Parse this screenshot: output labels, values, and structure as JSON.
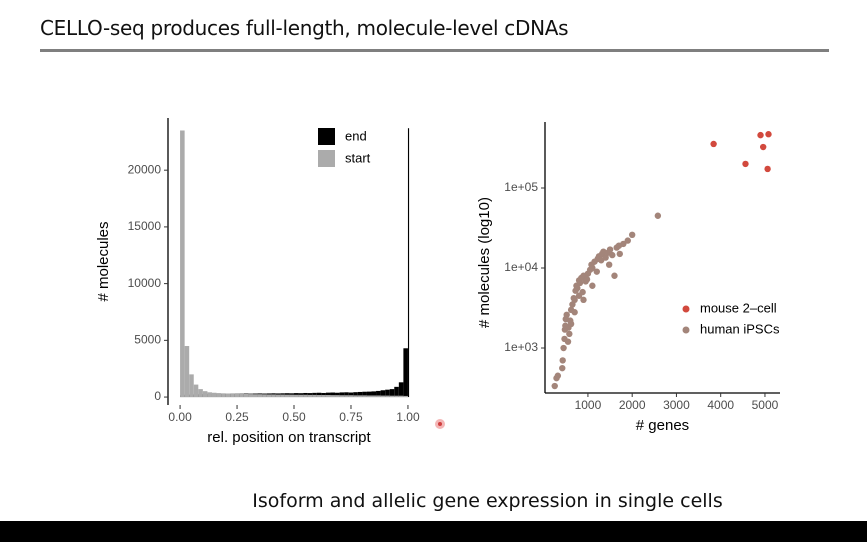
{
  "header": {
    "title": "CELLO-seq produces full-length, molecule-level cDNAs"
  },
  "caption": "Isoform and allelic gene expression in single cells",
  "chart_data": [
    {
      "type": "histogram",
      "x_label": "rel. position on transcript",
      "y_label": "# molecules",
      "bins": [
        0,
        0.02,
        0.04,
        0.06,
        0.08,
        0.1,
        0.12,
        0.14,
        0.16,
        0.18,
        0.2,
        0.22,
        0.24,
        0.26,
        0.28,
        0.3,
        0.32,
        0.34,
        0.36,
        0.38,
        0.4,
        0.42,
        0.44,
        0.46,
        0.48,
        0.5,
        0.52,
        0.54,
        0.56,
        0.58,
        0.6,
        0.62,
        0.64,
        0.66,
        0.68,
        0.7,
        0.72,
        0.74,
        0.76,
        0.78,
        0.8,
        0.82,
        0.84,
        0.86,
        0.88,
        0.9,
        0.92,
        0.94,
        0.96,
        0.98,
        1,
        1.005
      ],
      "series": [
        {
          "name": "end",
          "color": "#000000",
          "values": [
            150,
            200,
            220,
            230,
            250,
            260,
            270,
            280,
            280,
            290,
            290,
            300,
            300,
            300,
            310,
            300,
            310,
            320,
            310,
            320,
            330,
            320,
            330,
            340,
            330,
            350,
            340,
            360,
            350,
            370,
            380,
            360,
            390,
            400,
            380,
            410,
            420,
            400,
            430,
            450,
            470,
            480,
            500,
            540,
            600,
            650,
            700,
            900,
            1300,
            4300,
            23700
          ]
        },
        {
          "name": "start",
          "color": "#ababab",
          "values": [
            23500,
            4500,
            2000,
            1100,
            700,
            520,
            420,
            380,
            350,
            330,
            310,
            300,
            290,
            280,
            270,
            260,
            250,
            250,
            240,
            230,
            230,
            220,
            220,
            210,
            210,
            200,
            200,
            200,
            190,
            190,
            180,
            180,
            180,
            170,
            170,
            160,
            160,
            160,
            150,
            150,
            150,
            140,
            140,
            140,
            130,
            130,
            120,
            120,
            120,
            100,
            0
          ]
        }
      ],
      "xlim": [
        -0.053,
        1.009
      ],
      "ylim": [
        -700,
        24600
      ],
      "xticks": [
        {
          "value": 0,
          "label": "0.00"
        },
        0.25,
        {
          "value": 0.5,
          "label": "0.50"
        },
        0.75,
        {
          "value": 1,
          "label": "1.00"
        }
      ],
      "yticks": [
        0,
        5000,
        10000,
        15000,
        20000
      ],
      "legend": "top-right",
      "grid": false
    },
    {
      "type": "scatter",
      "x_label": "# genes",
      "y_label": "# molecules (log10)",
      "log_y": true,
      "series": [
        {
          "name": "mouse 2–cell",
          "color": "#d2493d",
          "x": [
            3840,
            4560,
            4900,
            5080,
            4960,
            5060
          ],
          "values": [
            355000,
            200000,
            458000,
            470000,
            325000,
            173000
          ]
        },
        {
          "name": "human iPSCs",
          "color": "#a3857a",
          "x": [
            250,
            290,
            320,
            420,
            430,
            450,
            470,
            480,
            490,
            500,
            520,
            560,
            580,
            600,
            620,
            650,
            680,
            700,
            720,
            740,
            760,
            800,
            820,
            850,
            880,
            900,
            950,
            980,
            1000,
            1050,
            1080,
            1100,
            1150,
            1200,
            1220,
            1250,
            1300,
            1320,
            1350,
            1400,
            1450,
            1480,
            1500,
            1550,
            1600,
            1650,
            1700,
            1720,
            1800,
            1900,
            2000,
            2580,
            620,
            700,
            550,
            800,
            1100,
            900
          ],
          "values": [
            335,
            420,
            450,
            560,
            700,
            1000,
            1300,
            1700,
            1900,
            2300,
            2600,
            1800,
            1500,
            2200,
            3000,
            3500,
            4200,
            4000,
            5200,
            6000,
            5600,
            7000,
            6500,
            7500,
            5000,
            8000,
            6800,
            7200,
            8500,
            9500,
            11000,
            10000,
            12000,
            9000,
            13000,
            14000,
            12500,
            15000,
            16000,
            13500,
            15500,
            11000,
            17000,
            14500,
            8000,
            18000,
            19000,
            15000,
            20000,
            22000,
            26000,
            45000,
            2000,
            2800,
            1200,
            4500,
            6000,
            4000
          ]
        }
      ],
      "xlim": [
        30,
        5340
      ],
      "ylim": [
        274,
        668000
      ],
      "xticks": [
        1000,
        2000,
        3000,
        4000,
        5000
      ],
      "yticks": [
        {
          "value": 1000,
          "label": "1e+03"
        },
        {
          "value": 10000,
          "label": "1e+04"
        },
        {
          "value": 100000,
          "label": "1e+05"
        }
      ],
      "legend": "right",
      "grid": false
    }
  ]
}
